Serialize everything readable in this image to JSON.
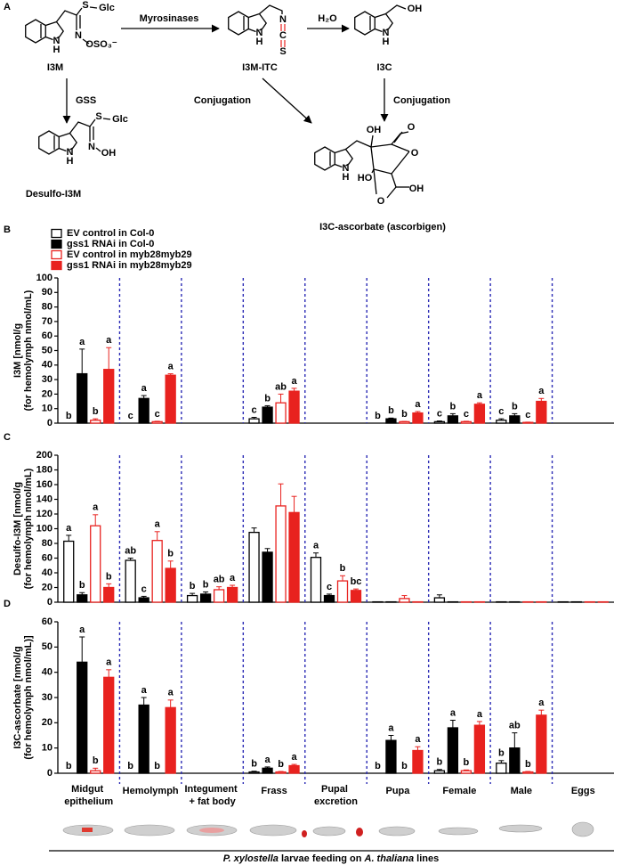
{
  "panel_a": {
    "label": "A",
    "compounds": [
      {
        "name": "I3M",
        "atoms": [
          "S",
          "Glc",
          "N",
          "OSO₃⁻",
          "N",
          "H"
        ]
      },
      {
        "name": "I3M-ITC",
        "atoms": [
          "N",
          "C",
          "S",
          "N",
          "H"
        ]
      },
      {
        "name": "I3C",
        "atoms": [
          "OH",
          "N",
          "H"
        ]
      },
      {
        "name": "Desulfo-I3M",
        "atoms": [
          "S",
          "Glc",
          "N",
          "OH",
          "N",
          "H"
        ]
      },
      {
        "name": "I3C-ascorbate (ascorbigen)",
        "atoms": [
          "OH",
          "O",
          "O",
          "HO",
          "O",
          "OH",
          "N",
          "H"
        ]
      }
    ],
    "arrows": [
      "Myrosinases",
      "H₂O",
      "GSS",
      "Conjugation",
      "Conjugation"
    ]
  },
  "chart_data": [
    {
      "type": "bar",
      "panel": "B",
      "y_label": [
        "I3M [nmol/g",
        "(for hemolymph nmol/mL)"
      ],
      "ylim": [
        0,
        100
      ],
      "yticks": [
        0,
        10,
        20,
        30,
        40,
        50,
        60,
        70,
        80,
        90,
        100
      ],
      "series": [
        {
          "name": "EV control in Col-0",
          "color": "#000000",
          "filled": false,
          "values": [
            0,
            0,
            0,
            3,
            0,
            0,
            1,
            2,
            0
          ],
          "errors": [
            0,
            0,
            0,
            1,
            0,
            0,
            0.5,
            1,
            0
          ],
          "letters": [
            "b",
            "c",
            null,
            "c",
            null,
            "b",
            "c",
            "c",
            null
          ]
        },
        {
          "name": "gss1 RNAi in Col-0",
          "color": "#000000",
          "filled": true,
          "values": [
            34,
            17,
            0,
            11,
            0,
            3,
            5,
            5,
            0
          ],
          "errors": [
            17,
            2,
            0,
            1,
            0,
            0.5,
            1.5,
            1.5,
            0
          ],
          "letters": [
            "a",
            "a",
            null,
            "b",
            null,
            "b",
            "b",
            "b",
            null
          ]
        },
        {
          "name": "EV control in myb28myb29",
          "color": "#e8221f",
          "filled": false,
          "values": [
            2,
            1,
            0,
            14,
            0,
            1,
            1,
            0.5,
            0
          ],
          "errors": [
            1,
            0.3,
            0,
            6,
            0,
            0.2,
            0.3,
            0.2,
            0
          ],
          "letters": [
            "b",
            "c",
            null,
            "ab",
            null,
            "b",
            "c",
            "c",
            null
          ]
        },
        {
          "name": "gss1 RNAi in myb28myb29",
          "color": "#e8221f",
          "filled": true,
          "values": [
            37,
            33,
            0,
            22,
            0,
            7,
            13,
            15,
            0
          ],
          "errors": [
            15,
            1,
            0,
            2,
            0,
            1,
            1,
            2,
            0
          ],
          "letters": [
            "a",
            "a",
            null,
            "a",
            null,
            "a",
            "a",
            "a",
            null
          ]
        }
      ]
    },
    {
      "type": "bar",
      "panel": "C",
      "y_label": [
        "Desulfo-I3M [nmol/g",
        "(for hemolymph nmol/mL)"
      ],
      "ylim": [
        0,
        200
      ],
      "yticks": [
        0,
        20,
        40,
        60,
        80,
        100,
        120,
        140,
        160,
        180,
        200
      ],
      "series": [
        {
          "color": "#000000",
          "filled": false,
          "values": [
            83,
            57,
            9,
            95,
            61,
            0.5,
            6,
            0.5,
            0.5
          ],
          "errors": [
            8,
            3,
            3,
            6,
            6,
            0,
            4,
            0,
            0
          ],
          "letters": [
            "a",
            "ab",
            "b",
            null,
            "a",
            null,
            null,
            null,
            null
          ]
        },
        {
          "color": "#000000",
          "filled": true,
          "values": [
            10,
            6,
            11,
            68,
            9,
            0.5,
            0.5,
            0.5,
            0.5
          ],
          "errors": [
            3,
            2,
            3,
            5,
            2,
            0,
            0,
            0,
            0
          ],
          "letters": [
            "b",
            "c",
            "b",
            null,
            "c",
            null,
            null,
            null,
            null
          ]
        },
        {
          "color": "#e8221f",
          "filled": false,
          "values": [
            104,
            84,
            17,
            131,
            29,
            5,
            0.5,
            0.5,
            0.5
          ],
          "errors": [
            15,
            12,
            4,
            30,
            7,
            4,
            0,
            0,
            0
          ],
          "letters": [
            "a",
            "a",
            "ab",
            null,
            "b",
            null,
            null,
            null,
            null
          ]
        },
        {
          "color": "#e8221f",
          "filled": true,
          "values": [
            20,
            46,
            20,
            122,
            16,
            0.5,
            0.5,
            0.5,
            0.5
          ],
          "errors": [
            5,
            10,
            3,
            22,
            2,
            0,
            0,
            0,
            0
          ],
          "letters": [
            "b",
            "b",
            "a",
            null,
            "bc",
            null,
            null,
            null,
            null
          ]
        }
      ]
    },
    {
      "type": "bar",
      "panel": "D",
      "y_label": [
        "I3C-ascorbate [nmol/g",
        "(for hemolymph nmol/mL)]"
      ],
      "ylim": [
        0,
        60
      ],
      "yticks": [
        0,
        10,
        20,
        30,
        40,
        50,
        60
      ],
      "categories": [
        "Midgut epithelium",
        "Hemolymph",
        "Integument + fat body",
        "Frass",
        "Pupal excretion",
        "Pupa",
        "Female",
        "Male",
        "Eggs"
      ],
      "series": [
        {
          "color": "#000000",
          "filled": false,
          "values": [
            0,
            0,
            0,
            0.5,
            0,
            0,
            1,
            4,
            0
          ],
          "errors": [
            0,
            0,
            0,
            0.3,
            0,
            0,
            0.5,
            1,
            0
          ],
          "letters": [
            "b",
            "b",
            null,
            "b",
            null,
            "b",
            "b",
            "b",
            null
          ]
        },
        {
          "color": "#000000",
          "filled": true,
          "values": [
            44,
            27,
            0,
            2,
            0,
            13,
            18,
            10,
            0
          ],
          "errors": [
            10,
            3,
            0,
            0.5,
            0,
            2,
            3,
            6,
            0
          ],
          "letters": [
            "a",
            "a",
            null,
            "a",
            null,
            "a",
            "a",
            "ab",
            null
          ]
        },
        {
          "color": "#e8221f",
          "filled": false,
          "values": [
            1,
            0,
            0,
            0.5,
            0,
            0,
            1,
            0.5,
            0
          ],
          "errors": [
            1,
            0,
            0,
            0.2,
            0,
            0,
            0.3,
            0.2,
            0
          ],
          "letters": [
            "b",
            "b",
            null,
            "b",
            null,
            "b",
            "b",
            "b",
            null
          ]
        },
        {
          "color": "#e8221f",
          "filled": true,
          "values": [
            38,
            26,
            0,
            3,
            0,
            9,
            19,
            23,
            0
          ],
          "errors": [
            3,
            3,
            0,
            0.5,
            0,
            1.5,
            1.5,
            2,
            0
          ],
          "letters": [
            "a",
            "a",
            null,
            "a",
            null,
            "a",
            "a",
            "a",
            null
          ]
        }
      ]
    }
  ],
  "footer": [
    "P. xylostella",
    " larvae feeding on ",
    "A. thaliana",
    " lines"
  ]
}
